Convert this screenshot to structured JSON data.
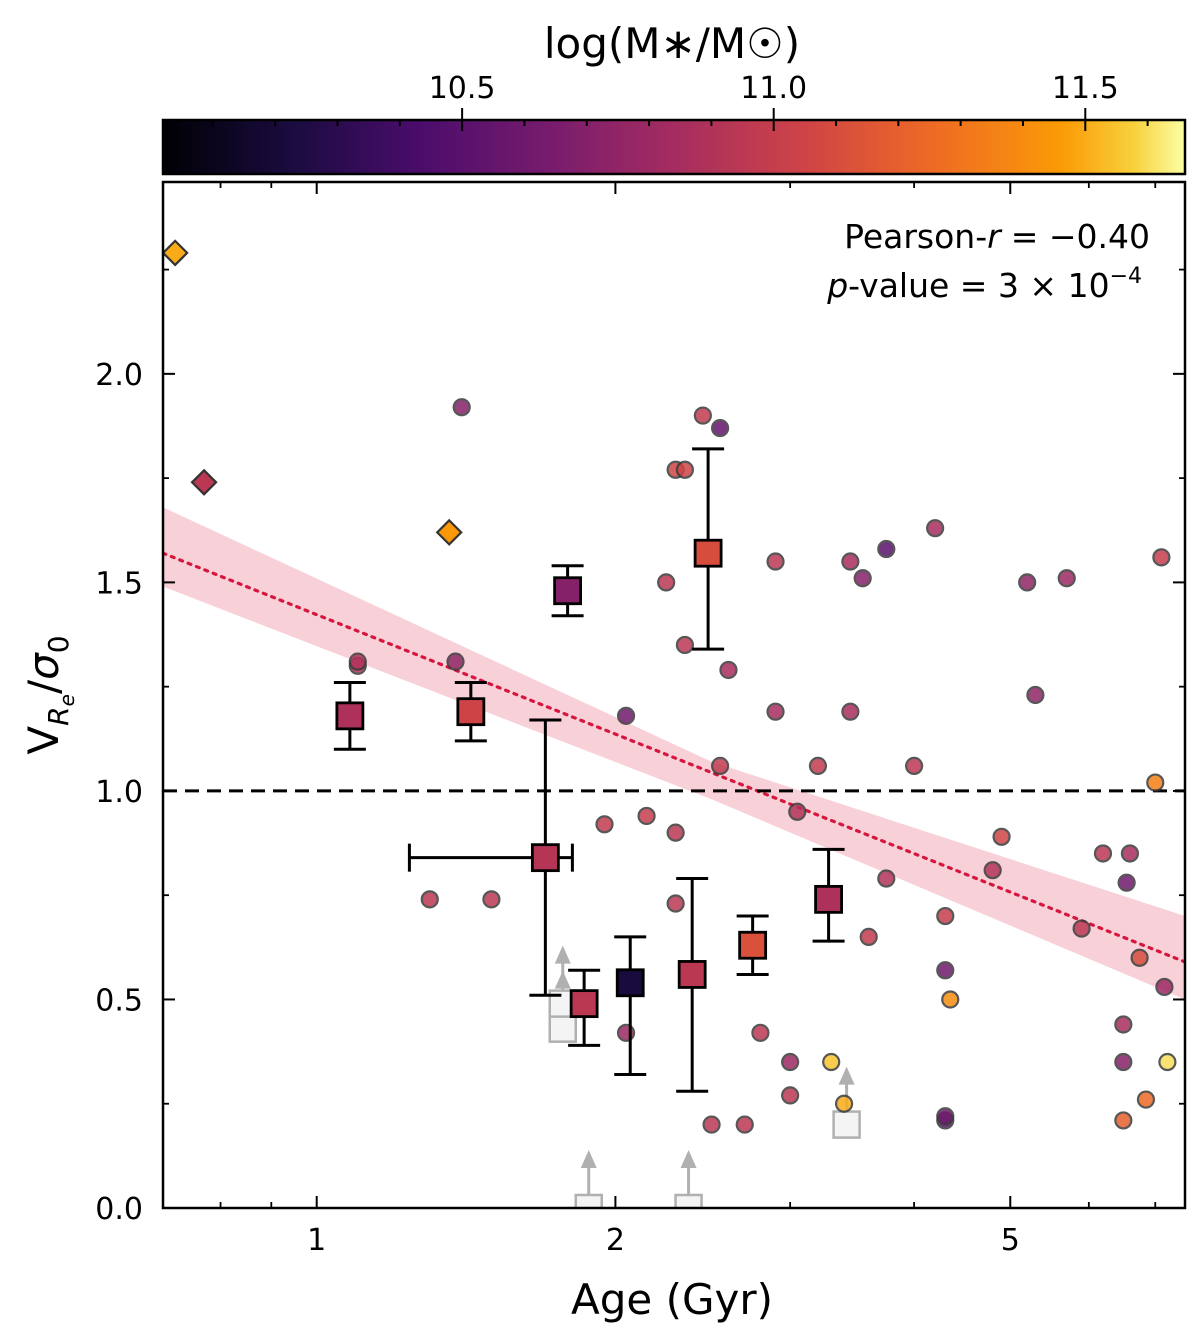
{
  "chart_data": {
    "type": "scatter",
    "xscale": "log",
    "xlim": [
      0.7,
      7.5
    ],
    "ylim": [
      0.0,
      2.46
    ],
    "xlabel": "Age (Gyr)",
    "ylabel": "V_{R_e}/σ_0",
    "ylabel_main": "V",
    "ylabel_sub": "R",
    "ylabel_subsub": "e",
    "ylabel_slash": "/",
    "ylabel_sigma": "σ",
    "ylabel_sigma_sub": "0",
    "x_ticks": [
      {
        "value": 1,
        "label": "1"
      },
      {
        "value": 2,
        "label": "2"
      },
      {
        "value": 5,
        "label": "5"
      }
    ],
    "y_ticks": [
      {
        "value": 0.0,
        "label": "0.0"
      },
      {
        "value": 0.5,
        "label": "0.5"
      },
      {
        "value": 1.0,
        "label": "1.0"
      },
      {
        "value": 1.5,
        "label": "1.5"
      },
      {
        "value": 2.0,
        "label": "2.0"
      }
    ],
    "colorbar": {
      "label": "log(M∗/M☉)",
      "range": [
        10.02,
        11.66
      ],
      "ticks": [
        {
          "value": 10.5,
          "label": "10.5"
        },
        {
          "value": 11.0,
          "label": "11.0"
        },
        {
          "value": 11.5,
          "label": "11.5"
        }
      ],
      "colormap": "inferno"
    },
    "annotations": {
      "pearson_label": "Pearson-",
      "pearson_r": "r",
      "pearson_value": "= −0.40",
      "pvalue_p": "p",
      "pvalue_label": "-value = 3 × 10",
      "pvalue_exp": "−4"
    },
    "reference_line": {
      "y": 1.0,
      "style": "dashed",
      "color": "#000000"
    },
    "fit": {
      "line_color": "#d6163c",
      "band_color": "#f2a9b8",
      "points": [
        [
          0.7,
          1.57
        ],
        [
          7.5,
          0.59
        ]
      ],
      "band_low": [
        [
          0.7,
          1.49
        ],
        [
          2.5,
          0.98
        ],
        [
          7.5,
          0.5
        ]
      ],
      "band_high": [
        [
          0.7,
          1.68
        ],
        [
          2.5,
          1.07
        ],
        [
          7.5,
          0.7
        ]
      ]
    },
    "series": [
      {
        "name": "circles",
        "marker": "circle",
        "points": [
          {
            "x": 1.1,
            "y": 1.3,
            "m": 10.92
          },
          {
            "x": 1.1,
            "y": 1.31,
            "m": 10.9
          },
          {
            "x": 1.4,
            "y": 1.92,
            "m": 10.7
          },
          {
            "x": 1.38,
            "y": 1.31,
            "m": 10.75
          },
          {
            "x": 1.3,
            "y": 0.74,
            "m": 10.95
          },
          {
            "x": 1.5,
            "y": 0.74,
            "m": 10.95
          },
          {
            "x": 1.95,
            "y": 0.92,
            "m": 10.98
          },
          {
            "x": 2.05,
            "y": 1.18,
            "m": 10.6
          },
          {
            "x": 2.05,
            "y": 0.42,
            "m": 10.8
          },
          {
            "x": 2.15,
            "y": 0.94,
            "m": 11.0
          },
          {
            "x": 2.25,
            "y": 1.5,
            "m": 10.95
          },
          {
            "x": 2.3,
            "y": 1.77,
            "m": 11.05
          },
          {
            "x": 2.35,
            "y": 1.77,
            "m": 11.05
          },
          {
            "x": 2.35,
            "y": 1.35,
            "m": 10.95
          },
          {
            "x": 2.3,
            "y": 0.73,
            "m": 10.95
          },
          {
            "x": 2.3,
            "y": 0.9,
            "m": 10.95
          },
          {
            "x": 2.45,
            "y": 1.9,
            "m": 10.98
          },
          {
            "x": 2.55,
            "y": 1.87,
            "m": 10.55
          },
          {
            "x": 2.6,
            "y": 1.29,
            "m": 10.85
          },
          {
            "x": 2.55,
            "y": 1.06,
            "m": 10.98
          },
          {
            "x": 2.5,
            "y": 0.2,
            "m": 10.95
          },
          {
            "x": 2.7,
            "y": 0.2,
            "m": 10.95
          },
          {
            "x": 2.8,
            "y": 0.42,
            "m": 10.95
          },
          {
            "x": 2.9,
            "y": 1.55,
            "m": 10.95
          },
          {
            "x": 2.9,
            "y": 1.19,
            "m": 10.85
          },
          {
            "x": 3.0,
            "y": 0.35,
            "m": 10.8
          },
          {
            "x": 3.0,
            "y": 0.27,
            "m": 10.95
          },
          {
            "x": 3.05,
            "y": 0.95,
            "m": 10.9
          },
          {
            "x": 3.2,
            "y": 1.06,
            "m": 10.98
          },
          {
            "x": 3.3,
            "y": 0.35,
            "m": 11.55
          },
          {
            "x": 3.4,
            "y": 0.25,
            "m": 11.5
          },
          {
            "x": 3.45,
            "y": 1.55,
            "m": 10.85
          },
          {
            "x": 3.45,
            "y": 1.19,
            "m": 10.85
          },
          {
            "x": 3.55,
            "y": 1.51,
            "m": 10.7
          },
          {
            "x": 3.6,
            "y": 0.65,
            "m": 10.98
          },
          {
            "x": 3.75,
            "y": 1.58,
            "m": 10.5
          },
          {
            "x": 3.75,
            "y": 0.79,
            "m": 10.9
          },
          {
            "x": 4.0,
            "y": 1.06,
            "m": 10.95
          },
          {
            "x": 4.2,
            "y": 1.63,
            "m": 10.85
          },
          {
            "x": 4.3,
            "y": 0.7,
            "m": 11.0
          },
          {
            "x": 4.3,
            "y": 0.57,
            "m": 10.6
          },
          {
            "x": 4.35,
            "y": 0.5,
            "m": 11.4
          },
          {
            "x": 4.3,
            "y": 0.21,
            "m": 10.5
          },
          {
            "x": 4.3,
            "y": 0.22,
            "m": 10.6
          },
          {
            "x": 4.8,
            "y": 0.81,
            "m": 10.9
          },
          {
            "x": 4.9,
            "y": 0.89,
            "m": 11.05
          },
          {
            "x": 5.2,
            "y": 1.5,
            "m": 10.75
          },
          {
            "x": 5.3,
            "y": 1.23,
            "m": 10.75
          },
          {
            "x": 5.7,
            "y": 1.51,
            "m": 10.8
          },
          {
            "x": 5.9,
            "y": 0.67,
            "m": 10.95
          },
          {
            "x": 6.2,
            "y": 0.85,
            "m": 10.95
          },
          {
            "x": 6.5,
            "y": 0.44,
            "m": 10.85
          },
          {
            "x": 6.55,
            "y": 0.78,
            "m": 10.6
          },
          {
            "x": 6.6,
            "y": 0.85,
            "m": 10.85
          },
          {
            "x": 6.5,
            "y": 0.35,
            "m": 10.7
          },
          {
            "x": 6.5,
            "y": 0.21,
            "m": 11.2
          },
          {
            "x": 6.75,
            "y": 0.6,
            "m": 11.1
          },
          {
            "x": 6.85,
            "y": 0.26,
            "m": 11.25
          },
          {
            "x": 7.1,
            "y": 1.56,
            "m": 11.0
          },
          {
            "x": 7.15,
            "y": 0.53,
            "m": 10.8
          },
          {
            "x": 7.0,
            "y": 1.02,
            "m": 11.35
          },
          {
            "x": 7.2,
            "y": 0.35,
            "m": 11.6
          }
        ]
      },
      {
        "name": "diamonds",
        "marker": "diamond",
        "points": [
          {
            "x": 0.72,
            "y": 2.29,
            "m": 11.5
          },
          {
            "x": 0.77,
            "y": 1.74,
            "m": 10.95
          },
          {
            "x": 1.36,
            "y": 1.62,
            "m": 11.45
          }
        ]
      },
      {
        "name": "squares",
        "marker": "square",
        "points": [
          {
            "x": 1.08,
            "y": 1.18,
            "m": 10.88,
            "yerr": [
              0.08,
              0.08
            ],
            "xerr": [
              0.03,
              0.03
            ]
          },
          {
            "x": 1.43,
            "y": 1.19,
            "m": 11.05,
            "yerr": [
              0.07,
              0.07
            ],
            "xerr": [
              0.03,
              0.03
            ]
          },
          {
            "x": 1.7,
            "y": 0.84,
            "m": 10.92,
            "yerr": [
              0.33,
              0.33
            ],
            "xerr": [
              0.46,
              0.11
            ]
          },
          {
            "x": 1.79,
            "y": 1.48,
            "m": 10.7,
            "yerr": [
              0.06,
              0.06
            ]
          },
          {
            "x": 1.86,
            "y": 0.49,
            "m": 10.95,
            "yerr": [
              0.1,
              0.08
            ]
          },
          {
            "x": 2.07,
            "y": 0.54,
            "m": 10.22,
            "yerr": [
              0.22,
              0.11
            ],
            "xerr": [
              0.04,
              0.04
            ]
          },
          {
            "x": 2.39,
            "y": 0.56,
            "m": 10.95,
            "yerr": [
              0.28,
              0.23
            ]
          },
          {
            "x": 2.48,
            "y": 1.57,
            "m": 11.1,
            "yerr": [
              0.23,
              0.25
            ]
          },
          {
            "x": 2.75,
            "y": 0.63,
            "m": 11.12,
            "yerr": [
              0.07,
              0.07
            ]
          },
          {
            "x": 3.28,
            "y": 0.74,
            "m": 10.88,
            "yerr": [
              0.1,
              0.12
            ]
          }
        ]
      },
      {
        "name": "lower limits",
        "marker": "open-square",
        "color": "#b0b0b0",
        "points": [
          {
            "x": 1.77,
            "y": 0.43
          },
          {
            "x": 1.77,
            "y": 0.49
          },
          {
            "x": 1.88,
            "y": 0.0
          },
          {
            "x": 2.37,
            "y": 0.0
          },
          {
            "x": 3.42,
            "y": 0.2
          }
        ]
      }
    ]
  }
}
